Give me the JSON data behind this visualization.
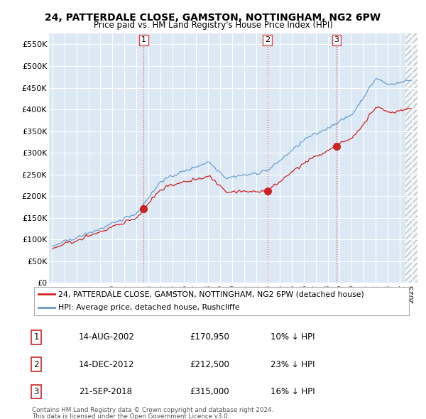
{
  "title": "24, PATTERDALE CLOSE, GAMSTON, NOTTINGHAM, NG2 6PW",
  "subtitle": "Price paid vs. HM Land Registry's House Price Index (HPI)",
  "legend_line1": "24, PATTERDALE CLOSE, GAMSTON, NOTTINGHAM, NG2 6PW (detached house)",
  "legend_line2": "HPI: Average price, detached house, Rushcliffe",
  "table_rows": [
    {
      "num": "1",
      "date": "14-AUG-2002",
      "price": "£170,950",
      "pct": "10% ↓ HPI"
    },
    {
      "num": "2",
      "date": "14-DEC-2012",
      "price": "£212,500",
      "pct": "23% ↓ HPI"
    },
    {
      "num": "3",
      "date": "21-SEP-2018",
      "price": "£315,000",
      "pct": "16% ↓ HPI"
    }
  ],
  "footnote1": "Contains HM Land Registry data © Crown copyright and database right 2024.",
  "footnote2": "This data is licensed under the Open Government Licence v3.0.",
  "hpi_color": "#6699cc",
  "price_color": "#cc2222",
  "marker_color": "#cc2222",
  "vline_color": "#dd4444",
  "bg_color": "#dce9f5",
  "plot_bg": "#dce9f5",
  "ylim": [
    0,
    575000
  ],
  "yticks": [
    0,
    50000,
    100000,
    150000,
    200000,
    250000,
    300000,
    350000,
    400000,
    450000,
    500000,
    550000
  ],
  "transaction_dates": [
    2002.617,
    2012.954,
    2018.726
  ],
  "transaction_prices": [
    170950,
    212500,
    315000
  ],
  "transaction_labels": [
    "1",
    "2",
    "3"
  ],
  "xlim_start": 1994.7,
  "xlim_end": 2025.5
}
